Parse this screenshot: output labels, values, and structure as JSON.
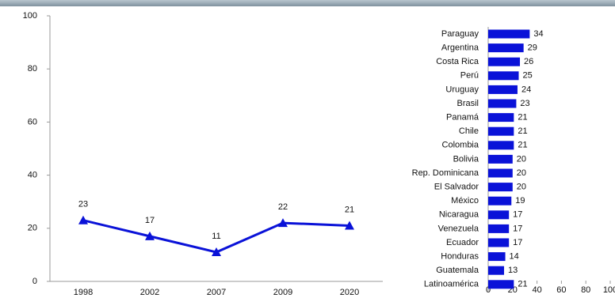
{
  "chart_data": [
    {
      "type": "line",
      "categories": [
        "1998",
        "2002",
        "2007",
        "2009",
        "2020"
      ],
      "values": [
        23,
        17,
        11,
        22,
        21
      ],
      "color": "#0a12d8",
      "ylim": [
        0,
        100
      ],
      "yticks": [
        0,
        20,
        40,
        60,
        80,
        100
      ]
    },
    {
      "type": "bar",
      "orientation": "horizontal",
      "categories": [
        "Paraguay",
        "Argentina",
        "Costa Rica",
        "Perú",
        "Uruguay",
        "Brasil",
        "Panamá",
        "Chile",
        "Colombia",
        "Bolivia",
        "Rep. Dominicana",
        "El Salvador",
        "México",
        "Nicaragua",
        "Venezuela",
        "Ecuador",
        "Honduras",
        "Guatemala",
        "Latinoamérica"
      ],
      "values": [
        34,
        29,
        26,
        25,
        24,
        23,
        21,
        21,
        21,
        20,
        20,
        20,
        19,
        17,
        17,
        17,
        14,
        13,
        21
      ],
      "color": "#0a12d8",
      "xlim": [
        0,
        100
      ],
      "xticks": [
        0,
        20,
        40,
        60,
        80,
        100
      ]
    }
  ]
}
